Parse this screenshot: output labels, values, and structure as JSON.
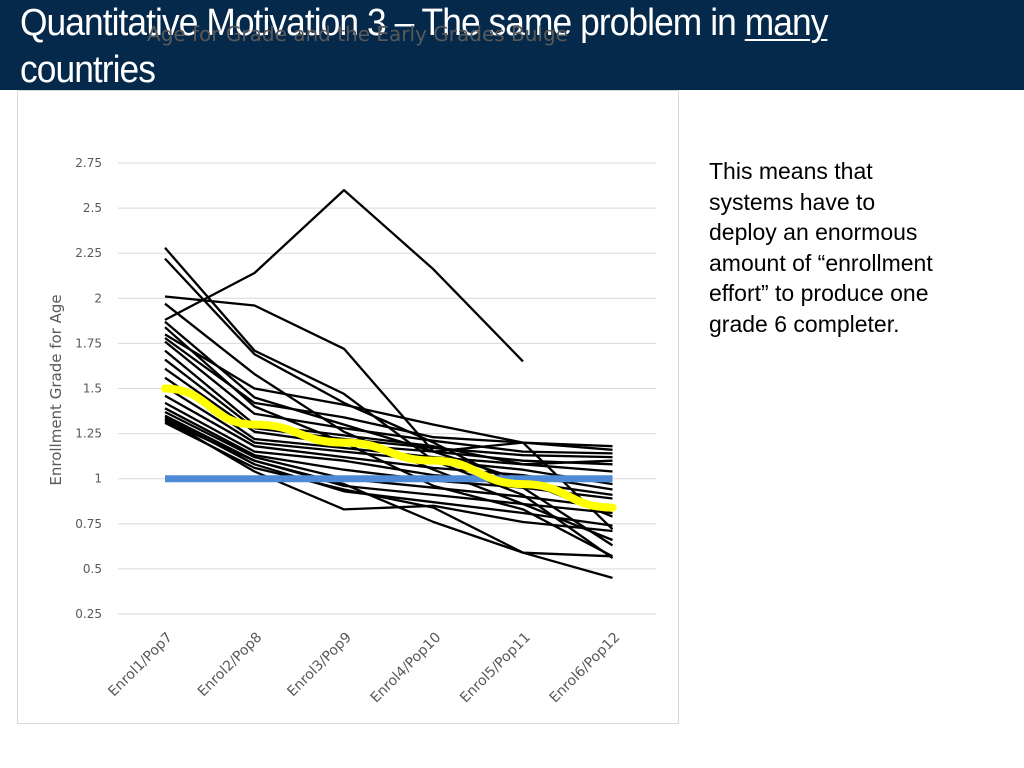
{
  "header": {
    "title_prefix": "Quantitative Motivation 3 – The same problem in ",
    "title_emphasis": "many",
    "title_suffix": "countries",
    "background": "#05294b"
  },
  "side_text": "This means that systems have to deploy an enormous amount of “enrollment effort” to produce one grade 6 completer.",
  "chart_data": {
    "type": "line",
    "title": "Age for Grade and the Early Grades Bulge",
    "xlabel": "",
    "ylabel": "Enrollment Grade for Age",
    "categories": [
      "Enrol1/Pop7",
      "Enrol2/Pop8",
      "Enrol3/Pop9",
      "Enrol4/Pop10",
      "Enrol5/Pop11",
      "Enrol6/Pop12"
    ],
    "y_ticks": [
      "2.75",
      "2.5",
      "2.25",
      "2",
      "1.75",
      "1.5",
      "1.25",
      "1",
      "0.75",
      "0.5",
      "0.25"
    ],
    "ylim": [
      0.25,
      2.75
    ],
    "grid": true,
    "country_color": "#000000",
    "series": [
      {
        "values": [
          1.88,
          2.14,
          2.6,
          2.16,
          1.65,
          null
        ]
      },
      {
        "values": [
          2.28,
          1.71,
          1.47,
          1.1,
          0.91,
          0.56
        ]
      },
      {
        "values": [
          2.22,
          1.69,
          1.42,
          1.2,
          0.95,
          0.63
        ]
      },
      {
        "values": [
          2.01,
          1.96,
          1.72,
          1.15,
          1.2,
          0.72
        ]
      },
      {
        "values": [
          1.97,
          1.58,
          1.26,
          1.05,
          0.86,
          0.66
        ]
      },
      {
        "values": [
          1.87,
          1.45,
          1.3,
          1.15,
          0.99,
          0.79
        ]
      },
      {
        "values": [
          1.84,
          1.4,
          1.2,
          0.96,
          0.83,
          0.57
        ]
      },
      {
        "values": [
          1.8,
          1.5,
          1.41,
          1.3,
          1.2,
          1.18
        ]
      },
      {
        "values": [
          1.78,
          1.42,
          1.34,
          1.23,
          1.2,
          1.16
        ]
      },
      {
        "values": [
          1.76,
          1.36,
          1.28,
          1.21,
          1.15,
          1.14
        ]
      },
      {
        "values": [
          1.71,
          1.3,
          1.24,
          1.18,
          1.08,
          1.1
        ]
      },
      {
        "values": [
          1.66,
          1.28,
          1.22,
          1.17,
          1.13,
          1.12
        ]
      },
      {
        "values": [
          1.61,
          1.26,
          1.19,
          1.15,
          1.1,
          1.08
        ]
      },
      {
        "values": [
          1.56,
          1.22,
          1.17,
          1.12,
          1.08,
          1.04
        ]
      },
      {
        "values": [
          1.51,
          1.2,
          1.15,
          1.1,
          1.05,
          0.97
        ]
      },
      {
        "values": [
          1.46,
          1.18,
          1.12,
          1.06,
          1.02,
          0.94
        ]
      },
      {
        "values": [
          1.42,
          1.15,
          1.1,
          1.02,
          0.98,
          0.91
        ]
      },
      {
        "values": [
          1.39,
          1.13,
          1.05,
          0.99,
          0.95,
          0.89
        ]
      },
      {
        "values": [
          1.37,
          1.12,
          1.0,
          0.95,
          0.9,
          0.84
        ]
      },
      {
        "values": [
          1.35,
          1.1,
          0.96,
          0.91,
          0.86,
          0.81
        ]
      },
      {
        "values": [
          1.34,
          1.08,
          0.93,
          0.87,
          0.81,
          0.74
        ]
      },
      {
        "values": [
          1.33,
          1.04,
          0.83,
          0.85,
          0.76,
          0.71
        ]
      },
      {
        "values": [
          1.32,
          1.1,
          0.97,
          0.76,
          0.59,
          0.45
        ]
      },
      {
        "values": [
          1.31,
          1.06,
          0.94,
          0.84,
          0.59,
          0.57
        ]
      }
    ],
    "average_series": {
      "values": [
        1.5,
        1.3,
        1.2,
        1.1,
        0.97,
        0.84
      ],
      "color": "#ffff00"
    },
    "reference_line": {
      "value": 1.0,
      "color": "#4f8ad6"
    }
  }
}
